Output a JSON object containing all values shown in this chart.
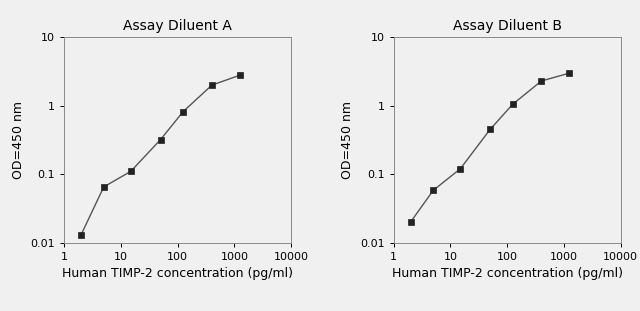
{
  "chart_A": {
    "title": "Assay Diluent A",
    "x": [
      2,
      5,
      15,
      50,
      125,
      400,
      1250
    ],
    "y": [
      0.013,
      0.065,
      0.11,
      0.32,
      0.82,
      2.0,
      2.8
    ],
    "xlabel": "Human TIMP-2 concentration (pg/ml)",
    "ylabel": "OD=450 nm",
    "xlim": [
      1,
      10000
    ],
    "ylim": [
      0.01,
      10
    ]
  },
  "chart_B": {
    "title": "Assay Diluent B",
    "x": [
      2,
      5,
      15,
      50,
      125,
      400,
      1250
    ],
    "y": [
      0.02,
      0.058,
      0.12,
      0.45,
      1.05,
      2.3,
      3.0
    ],
    "xlabel": "Human TIMP-2 concentration (pg/ml)",
    "ylabel": "OD=450 nm",
    "xlim": [
      1,
      10000
    ],
    "ylim": [
      0.01,
      10
    ]
  },
  "line_color": "#555555",
  "marker_color": "#222222",
  "bg_color": "#f0f0f0",
  "plot_bg_color": "#f0f0f0",
  "title_fontsize": 10,
  "label_fontsize": 9,
  "tick_fontsize": 8
}
